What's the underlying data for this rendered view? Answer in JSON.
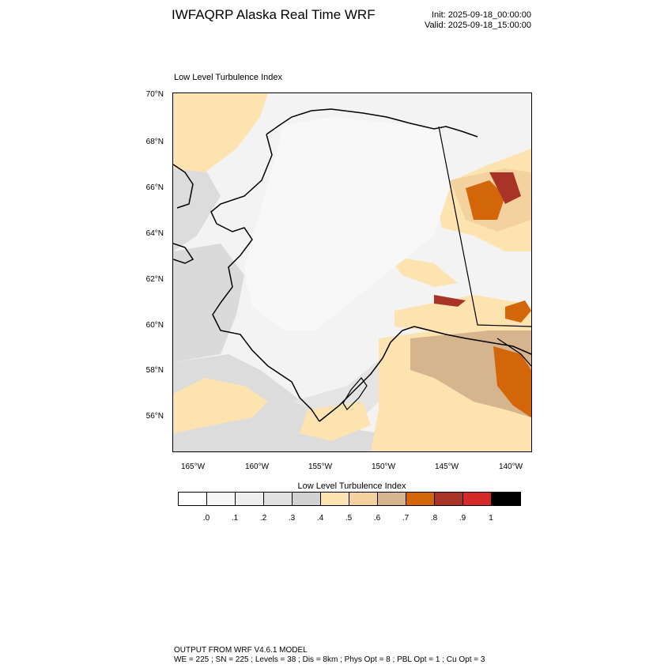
{
  "header": {
    "title": "IWFAQRP Alaska Real Time WRF",
    "init": "Init: 2025-09-18_00:00:00",
    "valid": "Valid: 2025-09-18_15:00:00"
  },
  "plot": {
    "label": "Low Level Turbulence Index",
    "lat_labels": [
      "70°N",
      "68°N",
      "66°N",
      "64°N",
      "62°N",
      "60°N",
      "58°N",
      "56°N"
    ],
    "lon_labels": [
      "165°W",
      "160°W",
      "155°W",
      "150°W",
      "145°W",
      "140°W"
    ]
  },
  "colorbar": {
    "title": "Low Level Turbulence Index",
    "colors": [
      "#ffffff",
      "#f7f7f7",
      "#eeeeee",
      "#e1e1e1",
      "#d2d2d2",
      "#fde3b0",
      "#f3d2a0",
      "#d5b48e",
      "#d4660a",
      "#a83428",
      "#d62a2a",
      "#000000"
    ],
    "ticks": [
      ".0",
      ".1",
      ".2",
      ".3",
      ".4",
      ".5",
      ".6",
      ".7",
      ".8",
      ".9",
      "1"
    ]
  },
  "footer": {
    "line1": "OUTPUT FROM WRF V4.6.1 MODEL",
    "line2": "WE = 225 ; SN = 225 ; Levels = 38 ; Dis = 8km ; Phys Opt = 8 ; PBL Opt = 1 ; Cu Opt = 3"
  }
}
